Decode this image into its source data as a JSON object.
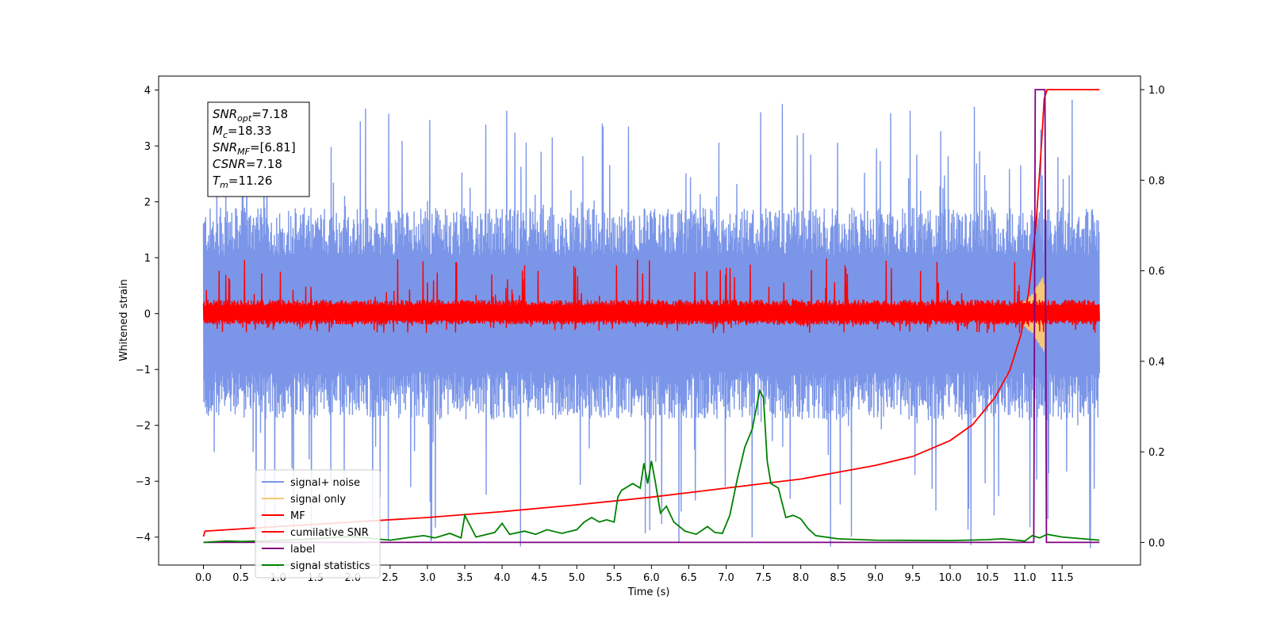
{
  "chart_data": {
    "type": "line",
    "xlabel": "Time (s)",
    "ylabel": "Whitened strain",
    "xlim": [
      -0.6,
      12.55
    ],
    "ylim_left": [
      -4.5,
      4.25
    ],
    "ylim_right": [
      -0.05,
      1.03
    ],
    "x_ticks": [
      "0.0",
      "0.5",
      "1.0",
      "1.5",
      "2.0",
      "2.5",
      "3.0",
      "3.5",
      "4.0",
      "4.5",
      "5.0",
      "5.5",
      "6.0",
      "6.5",
      "7.0",
      "7.5",
      "8.0",
      "8.5",
      "9.0",
      "9.5",
      "10.0",
      "10.5",
      "11.0",
      "11.5"
    ],
    "y_ticks_left": [
      "4",
      "3",
      "2",
      "1",
      "0",
      "−1",
      "−2",
      "−3",
      "−4"
    ],
    "y_ticks_right": [
      "1.0",
      "0.8",
      "0.6",
      "0.4",
      "0.2",
      "0.0"
    ],
    "legend_position": "lower-left",
    "info_box": {
      "lines": [
        {
          "base": "SNR",
          "sub": "opt",
          "rest": "=7.18"
        },
        {
          "base": "M",
          "sub": "c",
          "rest": "=18.33"
        },
        {
          "base": "SNR",
          "sub": "MF",
          "rest": "=[6.81]"
        },
        {
          "base": "CSNR",
          "sub": "",
          "rest": "=7.18"
        },
        {
          "base": "T",
          "sub": "m",
          "rest": "=11.26"
        }
      ]
    },
    "series": [
      {
        "name": "signal+ noise",
        "color": "#7b96e8",
        "axis": "left",
        "kind": "noise",
        "x_start": 0.0,
        "x_end": 12.0,
        "band_low": -1.9,
        "band_high": 1.9,
        "peak_high": 3.88,
        "peak_low": -4.2
      },
      {
        "name": "signal only",
        "color": "#f5c878",
        "axis": "left",
        "kind": "chirp",
        "x_start": 10.6,
        "x_end": 11.26,
        "amplitude_max": 0.7
      },
      {
        "name": "MF",
        "color": "#ff0000",
        "axis": "left",
        "kind": "noise",
        "x_start": 0.0,
        "x_end": 12.0,
        "band_low": -0.2,
        "band_high": 0.25,
        "peak_high": 1.0,
        "peak_low": -0.35
      },
      {
        "name": "cumilative SNR",
        "color": "#ff0000",
        "axis": "right",
        "x": [
          0.0,
          0.02,
          1.0,
          2.0,
          3.0,
          4.0,
          5.0,
          6.0,
          7.0,
          8.0,
          9.0,
          9.5,
          10.0,
          10.3,
          10.6,
          10.8,
          10.95,
          11.05,
          11.15,
          11.22,
          11.26,
          11.3,
          12.0
        ],
        "values": [
          0.013,
          0.025,
          0.035,
          0.045,
          0.055,
          0.068,
          0.083,
          0.1,
          0.12,
          0.14,
          0.17,
          0.19,
          0.225,
          0.26,
          0.32,
          0.38,
          0.46,
          0.55,
          0.7,
          0.87,
          0.98,
          1.0,
          1.0
        ]
      },
      {
        "name": "label",
        "color": "#800080",
        "axis": "right",
        "x": [
          0.0,
          11.12,
          11.14,
          11.27,
          11.29,
          12.0
        ],
        "values": [
          0.0,
          0.0,
          1.0,
          1.0,
          0.0,
          0.0
        ]
      },
      {
        "name": "signal statistics",
        "color": "#008000",
        "axis": "right",
        "x": [
          0.0,
          0.3,
          0.5,
          1.0,
          1.5,
          1.8,
          2.0,
          2.3,
          2.5,
          2.8,
          2.95,
          3.1,
          3.3,
          3.45,
          3.5,
          3.65,
          3.9,
          4.0,
          4.1,
          4.3,
          4.45,
          4.6,
          4.8,
          5.0,
          5.1,
          5.2,
          5.3,
          5.4,
          5.5,
          5.55,
          5.6,
          5.75,
          5.85,
          5.9,
          5.95,
          6.0,
          6.05,
          6.12,
          6.2,
          6.3,
          6.45,
          6.6,
          6.75,
          6.85,
          6.95,
          7.05,
          7.15,
          7.25,
          7.35,
          7.45,
          7.5,
          7.55,
          7.6,
          7.7,
          7.8,
          7.9,
          8.0,
          8.1,
          8.2,
          8.5,
          9.0,
          10.0,
          10.5,
          10.7,
          11.0,
          11.1,
          11.2,
          11.3,
          11.5,
          12.0
        ],
        "values": [
          0.0,
          0.003,
          0.002,
          0.004,
          0.008,
          0.012,
          0.013,
          0.008,
          0.005,
          0.012,
          0.015,
          0.01,
          0.02,
          0.01,
          0.06,
          0.012,
          0.022,
          0.042,
          0.018,
          0.025,
          0.018,
          0.028,
          0.02,
          0.028,
          0.045,
          0.055,
          0.045,
          0.05,
          0.045,
          0.1,
          0.115,
          0.13,
          0.12,
          0.175,
          0.13,
          0.18,
          0.135,
          0.065,
          0.08,
          0.045,
          0.025,
          0.018,
          0.035,
          0.022,
          0.02,
          0.06,
          0.14,
          0.21,
          0.25,
          0.335,
          0.32,
          0.18,
          0.13,
          0.12,
          0.055,
          0.06,
          0.052,
          0.03,
          0.015,
          0.008,
          0.005,
          0.004,
          0.006,
          0.008,
          0.003,
          0.015,
          0.01,
          0.018,
          0.012,
          0.005
        ]
      }
    ]
  }
}
